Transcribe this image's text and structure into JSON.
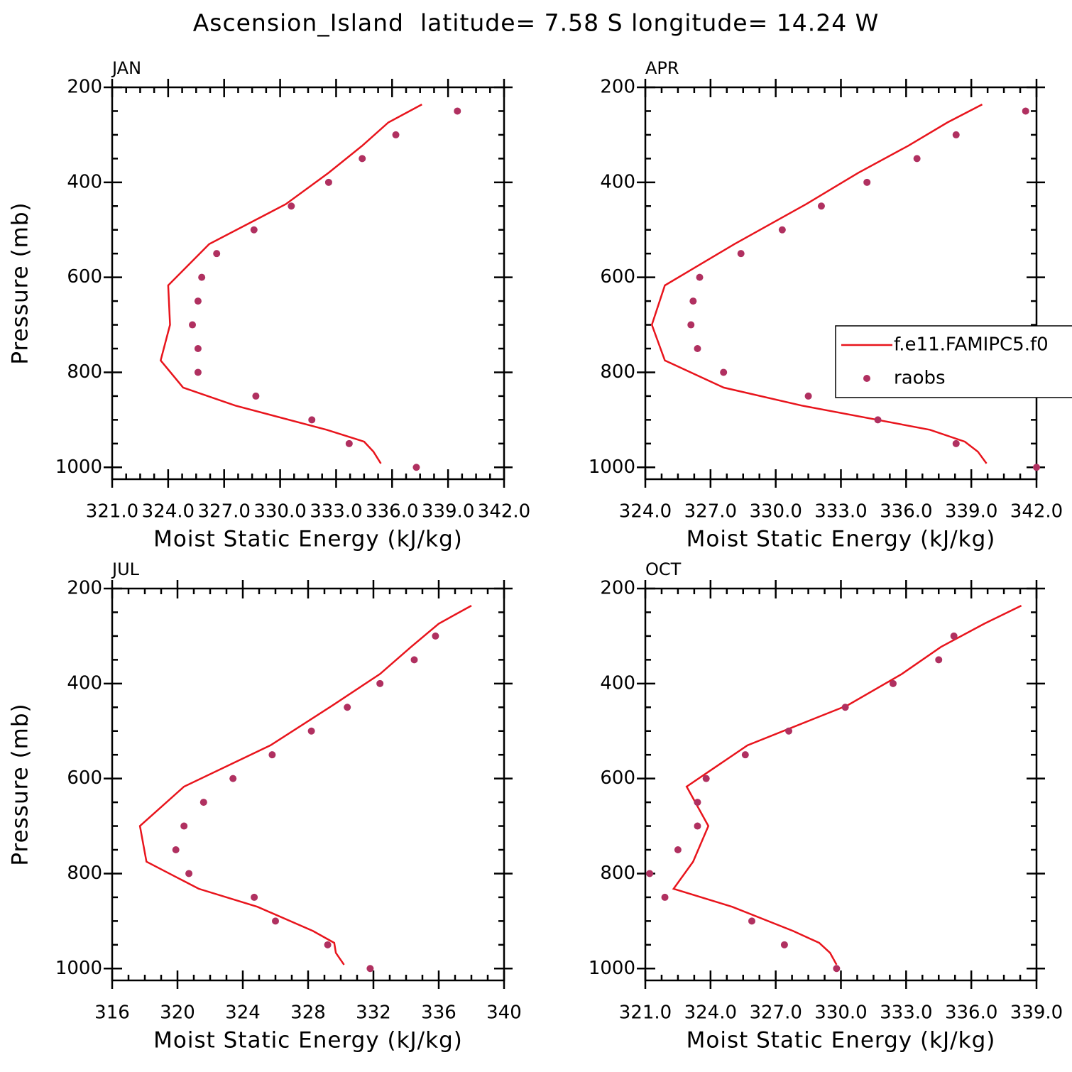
{
  "title": "Ascension_Island  latitude= 7.58 S longitude= 14.24 W",
  "chart_data": [
    {
      "type": "line",
      "title": "JAN",
      "xlabel": "Moist Static Energy (kJ/kg)",
      "ylabel": "Pressure (mb)",
      "xlim": [
        321,
        342
      ],
      "xticks": [
        {
          "value": 321,
          "label": "321.0"
        },
        {
          "value": 324,
          "label": "324.0"
        },
        {
          "value": 327,
          "label": "327.0"
        },
        {
          "value": 330,
          "label": "330.0"
        },
        {
          "value": 333,
          "label": "333.0"
        },
        {
          "value": 336,
          "label": "336.0"
        },
        {
          "value": 339,
          "label": "339.0"
        },
        {
          "value": 342,
          "label": "342.0"
        }
      ],
      "ylim": [
        1025,
        200
      ],
      "yticks": [
        200,
        400,
        600,
        800,
        1000
      ],
      "series": [
        {
          "mode": "line",
          "color": "#e8141c",
          "pressure": [
            236,
            274,
            323,
            380,
            446,
            530,
            617,
            700,
            775,
            832,
            870,
            921,
            946,
            967,
            992
          ],
          "values": [
            337.6,
            335.8,
            334.4,
            332.6,
            330.3,
            326.2,
            324.0,
            324.1,
            323.6,
            324.8,
            327.6,
            332.5,
            334.5,
            335.0,
            335.4
          ]
        },
        {
          "mode": "markers",
          "color": "#b03060",
          "pressure": [
            250,
            300,
            350,
            400,
            450,
            500,
            550,
            600,
            650,
            700,
            750,
            800,
            850,
            900,
            950,
            1000
          ],
          "values": [
            339.5,
            336.2,
            334.4,
            332.6,
            330.6,
            328.6,
            326.6,
            325.8,
            325.6,
            325.3,
            325.6,
            325.6,
            328.7,
            331.7,
            333.7,
            337.3
          ]
        }
      ]
    },
    {
      "type": "line",
      "title": "APR",
      "xlabel": "Moist Static Energy (kJ/kg)",
      "xlim": [
        324,
        342
      ],
      "xticks": [
        {
          "value": 324,
          "label": "324.0"
        },
        {
          "value": 327,
          "label": "327.0"
        },
        {
          "value": 330,
          "label": "330.0"
        },
        {
          "value": 333,
          "label": "333.0"
        },
        {
          "value": 336,
          "label": "336.0"
        },
        {
          "value": 339,
          "label": "339.0"
        },
        {
          "value": 342,
          "label": "342.0"
        }
      ],
      "ylim": [
        1025,
        200
      ],
      "yticks": [
        200,
        400,
        600,
        800,
        1000
      ],
      "legend": "right",
      "series": [
        {
          "name": "f.e11.FAMIPC5.f0",
          "mode": "line",
          "color": "#e8141c",
          "pressure": [
            236,
            274,
            323,
            380,
            446,
            530,
            617,
            700,
            775,
            832,
            870,
            921,
            946,
            967,
            992
          ],
          "values": [
            339.5,
            337.9,
            336.1,
            333.8,
            331.4,
            328.1,
            324.9,
            324.3,
            324.9,
            327.6,
            331.2,
            337.1,
            338.7,
            339.3,
            339.7
          ]
        },
        {
          "name": "raobs",
          "mode": "markers",
          "color": "#b03060",
          "pressure": [
            250,
            300,
            350,
            400,
            450,
            500,
            550,
            600,
            650,
            700,
            750,
            800,
            850,
            900,
            950,
            1000
          ],
          "values": [
            341.5,
            338.3,
            336.5,
            334.2,
            332.1,
            330.3,
            328.4,
            326.5,
            326.2,
            326.1,
            326.4,
            327.6,
            331.5,
            334.7,
            338.3,
            342.0
          ]
        }
      ]
    },
    {
      "type": "line",
      "title": "JUL",
      "xlabel": "Moist Static Energy (kJ/kg)",
      "ylabel": "Pressure (mb)",
      "xlim": [
        316,
        340
      ],
      "xticks": [
        316,
        320,
        324,
        328,
        332,
        336,
        340
      ],
      "ylim": [
        1025,
        200
      ],
      "yticks": [
        200,
        400,
        600,
        800,
        1000
      ],
      "series": [
        {
          "mode": "line",
          "color": "#e8141c",
          "pressure": [
            236,
            274,
            323,
            380,
            446,
            530,
            617,
            700,
            775,
            832,
            870,
            921,
            946,
            967,
            992
          ],
          "values": [
            338.0,
            336.0,
            334.3,
            332.4,
            329.5,
            325.7,
            320.4,
            317.7,
            318.1,
            321.3,
            324.9,
            328.3,
            329.6,
            329.7,
            330.2
          ]
        },
        {
          "mode": "markers",
          "color": "#b03060",
          "pressure": [
            300,
            350,
            400,
            450,
            500,
            550,
            600,
            650,
            700,
            750,
            800,
            850,
            900,
            950,
            1000
          ],
          "values": [
            335.8,
            334.5,
            332.4,
            330.4,
            328.2,
            325.8,
            323.4,
            321.6,
            320.4,
            319.9,
            320.7,
            324.7,
            326.0,
            329.2,
            331.8
          ]
        }
      ]
    },
    {
      "type": "line",
      "title": "OCT",
      "xlabel": "Moist Static Energy (kJ/kg)",
      "xlim": [
        321,
        339
      ],
      "xticks": [
        {
          "value": 321,
          "label": "321.0"
        },
        {
          "value": 324,
          "label": "324.0"
        },
        {
          "value": 327,
          "label": "327.0"
        },
        {
          "value": 330,
          "label": "330.0"
        },
        {
          "value": 333,
          "label": "333.0"
        },
        {
          "value": 336,
          "label": "336.0"
        },
        {
          "value": 339,
          "label": "339.0"
        }
      ],
      "ylim": [
        1025,
        200
      ],
      "yticks": [
        200,
        400,
        600,
        800,
        1000
      ],
      "series": [
        {
          "mode": "line",
          "color": "#e8141c",
          "pressure": [
            236,
            274,
            323,
            380,
            446,
            530,
            617,
            700,
            775,
            832,
            870,
            921,
            946,
            967,
            992
          ],
          "values": [
            338.3,
            336.6,
            334.6,
            332.8,
            330.3,
            325.7,
            322.9,
            323.9,
            323.2,
            322.3,
            325.0,
            327.8,
            329.0,
            329.5,
            329.8
          ]
        },
        {
          "mode": "markers",
          "color": "#b03060",
          "pressure": [
            300,
            350,
            400,
            450,
            500,
            550,
            600,
            650,
            700,
            750,
            800,
            850,
            900,
            950,
            1000
          ],
          "values": [
            335.2,
            334.5,
            332.4,
            330.2,
            327.6,
            325.6,
            323.8,
            323.4,
            323.4,
            322.5,
            321.2,
            321.9,
            325.9,
            327.4,
            329.8
          ]
        }
      ]
    }
  ]
}
